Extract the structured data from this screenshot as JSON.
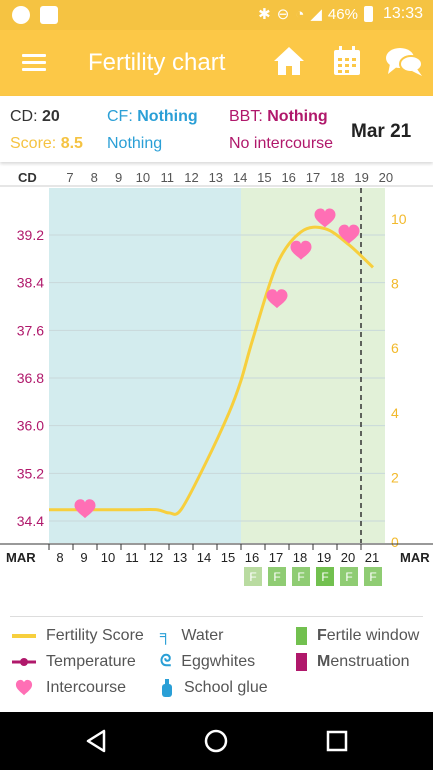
{
  "status_bar": {
    "battery": "46%",
    "time": "13:33"
  },
  "app_bar": {
    "title": "Fertility chart"
  },
  "info": {
    "cd_label": "CD:",
    "cd_value": "20",
    "score_label": "Score:",
    "score_value": "8.5",
    "cf_label": "CF:",
    "cf_value": "Nothing",
    "cf_sub": "Nothing",
    "bbt_label": "BBT:",
    "bbt_value": "Nothing",
    "bbt_sub": "No intercourse",
    "date": "Mar 21"
  },
  "chart_data": {
    "type": "line",
    "cd_axis_label": "CD",
    "cd_ticks": [
      "7",
      "8",
      "9",
      "10",
      "11",
      "12",
      "13",
      "14",
      "15",
      "16",
      "17",
      "18",
      "19",
      "20"
    ],
    "date_axis_label_left": "MAR",
    "date_axis_label_right": "MAR",
    "date_ticks": [
      "8",
      "9",
      "10",
      "11",
      "12",
      "13",
      "14",
      "15",
      "16",
      "17",
      "18",
      "19",
      "20",
      "21"
    ],
    "temperature_axis": {
      "ticks": [
        "39.2",
        "38.4",
        "37.6",
        "36.8",
        "36.0",
        "35.2",
        "34.4"
      ],
      "range": [
        34.4,
        39.2
      ]
    },
    "score_axis": {
      "ticks": [
        "10",
        "8",
        "6",
        "4",
        "2",
        "0"
      ],
      "range": [
        0,
        10
      ]
    },
    "series": [
      {
        "name": "Fertility Score",
        "color": "#f7cf3d",
        "x": [
          7.5,
          8,
          9,
          10,
          11,
          12,
          12.5,
          13,
          14,
          15,
          15.5,
          16,
          17,
          18,
          19,
          20,
          21
        ],
        "y": [
          1.0,
          1.0,
          1.0,
          1.0,
          1.0,
          1.0,
          0.9,
          1.0,
          2.4,
          4.0,
          5.0,
          6.3,
          8.6,
          9.6,
          9.7,
          9.2,
          8.5
        ]
      }
    ],
    "intercourse_markers": [
      {
        "date": 9,
        "score": 1.0
      },
      {
        "date": 17,
        "score": 7.5
      },
      {
        "date": 18,
        "score": 9.0
      },
      {
        "date": 19,
        "score": 10.0
      },
      {
        "date": 20,
        "score": 9.5
      }
    ],
    "background_regions": [
      {
        "from": 7.5,
        "to": 15.5,
        "color": "#d3ecee"
      },
      {
        "from": 15.5,
        "to": 21.5,
        "color": "#e2f1d8"
      }
    ],
    "today_marker_date": 21,
    "fertile_window": [
      {
        "date": 16,
        "label": "F",
        "shade": "#b9dba0"
      },
      {
        "date": 17,
        "label": "F",
        "shade": "#8fcc73"
      },
      {
        "date": 18,
        "label": "F",
        "shade": "#8fcc73"
      },
      {
        "date": 19,
        "label": "F",
        "shade": "#72c04f"
      },
      {
        "date": 20,
        "label": "F",
        "shade": "#8fcc73"
      },
      {
        "date": 21,
        "label": "F",
        "shade": "#8fcc73"
      }
    ]
  },
  "legend": {
    "fertility_score": "Fertility Score",
    "water": "Water",
    "fertile_window": "ertile window",
    "fertile_window_initial": "F",
    "temperature": "Temperature",
    "eggwhites": "Eggwhites",
    "menstruation": "enstruation",
    "menstruation_initial": "M",
    "intercourse": "Intercourse",
    "school_glue": "School glue"
  },
  "colors": {
    "status_bar": "#f5c342",
    "app_bar": "#fcc847",
    "cd_blue": "#2a9fd6",
    "bbt_magenta": "#b0186b",
    "score_yellow": "#f5c342",
    "temp_axis": "#b0186b",
    "score_axis": "#f2b92b",
    "heart": "#ff6fb5",
    "fertile_green": "#72c04f",
    "menstruation": "#b0186b"
  }
}
